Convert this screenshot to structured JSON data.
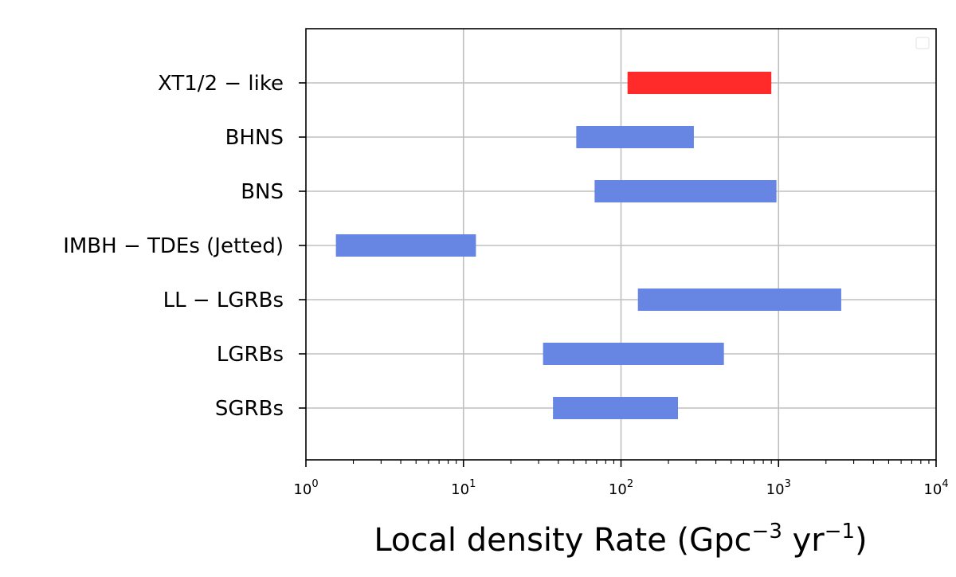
{
  "chart_data": {
    "type": "bar",
    "orientation": "horizontal",
    "x_scale": "log",
    "xlim": [
      1,
      10000
    ],
    "x_ticks": [
      {
        "value": 1,
        "base": "10",
        "exp": "0"
      },
      {
        "value": 10,
        "base": "10",
        "exp": "1"
      },
      {
        "value": 100,
        "base": "10",
        "exp": "2"
      },
      {
        "value": 1000,
        "base": "10",
        "exp": "3"
      },
      {
        "value": 10000,
        "base": "10",
        "exp": "4"
      }
    ],
    "xlabel": {
      "prefix": "Local density Rate (Gpc",
      "sup1": "−3",
      "mid": " yr",
      "sup2": "−1",
      "suffix": ")"
    },
    "ylabel": "",
    "grid": true,
    "legend": "top-right (empty)",
    "categories": [
      "XT1/2 − like",
      "BHNS",
      "BNS",
      "IMBH − TDEs (Jetted)",
      "LL − LGRBs",
      "LGRBs",
      "SGRBs"
    ],
    "ranges": [
      {
        "label": "XT1/2 − like",
        "low": 110,
        "high": 900,
        "color": "#ff2a2a"
      },
      {
        "label": "BHNS",
        "low": 52,
        "high": 290,
        "color": "#6785e3"
      },
      {
        "label": "BNS",
        "low": 68,
        "high": 970,
        "color": "#6785e3"
      },
      {
        "label": "IMBH − TDEs (Jetted)",
        "low": 1.55,
        "high": 12,
        "color": "#6785e3"
      },
      {
        "label": "LL − LGRBs",
        "low": 128,
        "high": 2500,
        "color": "#6785e3"
      },
      {
        "label": "LGRBs",
        "low": 32,
        "high": 450,
        "color": "#6785e3"
      },
      {
        "label": "SGRBs",
        "low": 37,
        "high": 230,
        "color": "#6785e3"
      }
    ],
    "colors": {
      "highlight": "#ff2a2a",
      "default": "#6785e3",
      "grid": "#bfbfbf"
    }
  }
}
